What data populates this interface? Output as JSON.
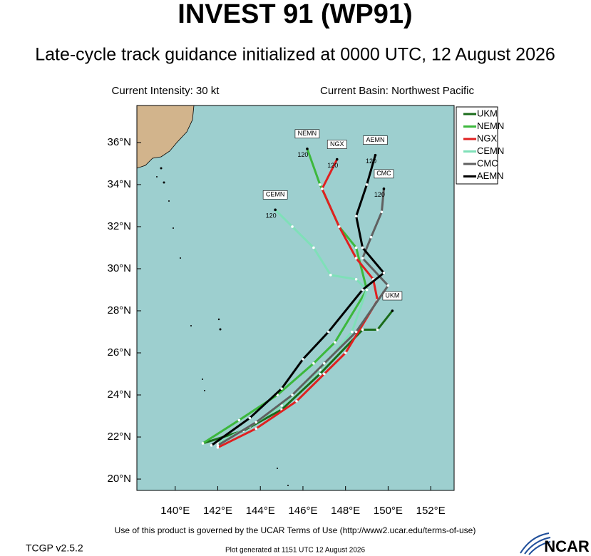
{
  "header": {
    "title": "INVEST 91 (WP91)",
    "subtitle": "Late-cycle track guidance initialized at 0000 UTC, 12 August 2026",
    "intensity": "Current Intensity: 30 kt",
    "basin": "Current Basin: Northwest Pacific"
  },
  "map": {
    "type": "track",
    "xlim": [
      138.2,
      153.1
    ],
    "ylim": [
      19.46,
      37.76
    ],
    "xticks": [
      {
        "value": 140,
        "label": "140°E"
      },
      {
        "value": 142,
        "label": "142°E"
      },
      {
        "value": 144,
        "label": "144°E"
      },
      {
        "value": 146,
        "label": "146°E"
      },
      {
        "value": 148,
        "label": "148°E"
      },
      {
        "value": 150,
        "label": "150°E"
      },
      {
        "value": 152,
        "label": "152°E"
      }
    ],
    "yticks": [
      {
        "value": 20,
        "label": "20°N"
      },
      {
        "value": 22,
        "label": "22°N"
      },
      {
        "value": 24,
        "label": "24°N"
      },
      {
        "value": 26,
        "label": "26°N"
      },
      {
        "value": 28,
        "label": "28°N"
      },
      {
        "value": 30,
        "label": "30°N"
      },
      {
        "value": 32,
        "label": "32°N"
      },
      {
        "value": 34,
        "label": "34°N"
      },
      {
        "value": 36,
        "label": "36°N"
      }
    ],
    "grid_lon": [
      140,
      145,
      150
    ],
    "grid_lat": [
      25,
      30,
      35
    ],
    "series": [
      {
        "name": "UKM",
        "color": "#1a6b1a",
        "lon": [
          141.3,
          143.2,
          145,
          146.8,
          148.8,
          149.5,
          150.2
        ],
        "lat": [
          21.7,
          22.3,
          23.3,
          25.0,
          27.1,
          27.1,
          28.0
        ]
      },
      {
        "name": "NEMN",
        "color": "#3cb83c",
        "lon": [
          141.3,
          143,
          144.8,
          146.5,
          147.5,
          149,
          148.5,
          147.7,
          146.8,
          146.2
        ],
        "lat": [
          21.7,
          22.8,
          24.0,
          25.5,
          26.5,
          29.0,
          31.0,
          32.0,
          34.0,
          35.7
        ],
        "end_label": "120"
      },
      {
        "name": "NGX",
        "color": "#e02020",
        "lon": [
          142,
          143.8,
          145.7,
          147,
          148,
          149.5,
          149.3,
          148.5,
          147.7,
          146.9,
          147.6
        ],
        "lat": [
          21.5,
          22.4,
          23.7,
          25.0,
          26.0,
          28.5,
          29.5,
          30.5,
          32.0,
          33.8,
          35.2
        ],
        "end_label": "120"
      },
      {
        "name": "CEMN",
        "color": "#7fe0b8",
        "lon": [
          142,
          143.5,
          145,
          146.8,
          148.3,
          149,
          148.5,
          147.3,
          146.5,
          145.5,
          144.7
        ],
        "lat": [
          21.7,
          22.5,
          23.5,
          25.2,
          27.0,
          29.0,
          29.5,
          29.7,
          31.0,
          32.0,
          32.8
        ],
        "end_label": "120"
      },
      {
        "name": "CMC",
        "color": "#606060",
        "lon": [
          142,
          143.8,
          145.5,
          147,
          148.5,
          150,
          148.8,
          149.2,
          149.7,
          149.8
        ],
        "lat": [
          21.6,
          22.7,
          24.0,
          25.5,
          27.0,
          29.2,
          30.5,
          31.5,
          32.7,
          33.8
        ],
        "end_label": "120"
      },
      {
        "name": "AEMN",
        "color": "#000000",
        "lon": [
          141.7,
          143.5,
          145,
          146,
          147.2,
          148.8,
          149.8,
          148.8,
          148.5,
          149,
          149.4
        ],
        "lat": [
          21.6,
          22.9,
          24.3,
          25.7,
          27.0,
          29.0,
          29.8,
          31.0,
          32.5,
          34.0,
          35.4
        ],
        "end_label": "120"
      }
    ]
  },
  "footer": {
    "terms": "Use of this product is governed by the UCAR Terms of Use (http://www2.ucar.edu/terms-of-use)",
    "version": "TCGP v2.5.2",
    "generated": "Plot generated at 1151 UTC   12 August 2026",
    "logo": "NCAR"
  }
}
